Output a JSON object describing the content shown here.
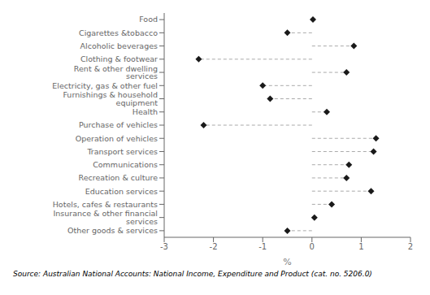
{
  "chart_data": {
    "type": "lollipop",
    "orientation": "horizontal",
    "categories": [
      "Food",
      "Cigarettes &tobacco",
      "Alcoholic beverages",
      "Clothing & footwear",
      "Rent & other dwelling services",
      "Electricity, gas & other fuel",
      "Furnishings & household equipment",
      "Health",
      "Purchase of vehicles",
      "Operation of vehicles",
      "Transport services",
      "Communications",
      "Recreation & culture",
      "Education services",
      "Hotels, cafes & restaurants",
      "Insurance & other financial services",
      "Other goods & services"
    ],
    "values": [
      0.02,
      -0.5,
      0.85,
      -2.3,
      0.7,
      -1.0,
      -0.85,
      0.3,
      -2.2,
      1.3,
      1.25,
      0.75,
      0.7,
      1.2,
      0.4,
      0.05,
      -0.5
    ],
    "xlim": [
      -3,
      2
    ],
    "xticks": [
      -3,
      -2,
      -1,
      0,
      1,
      2
    ],
    "xlabel": "%",
    "color": "#1a1a1a",
    "marker": "diamond",
    "line_style": "dashed",
    "grid": false,
    "annotations": [
      "Source: Australian National Accounts: National Income, Expenditure and Product  (cat. no. 5206.0)"
    ]
  }
}
